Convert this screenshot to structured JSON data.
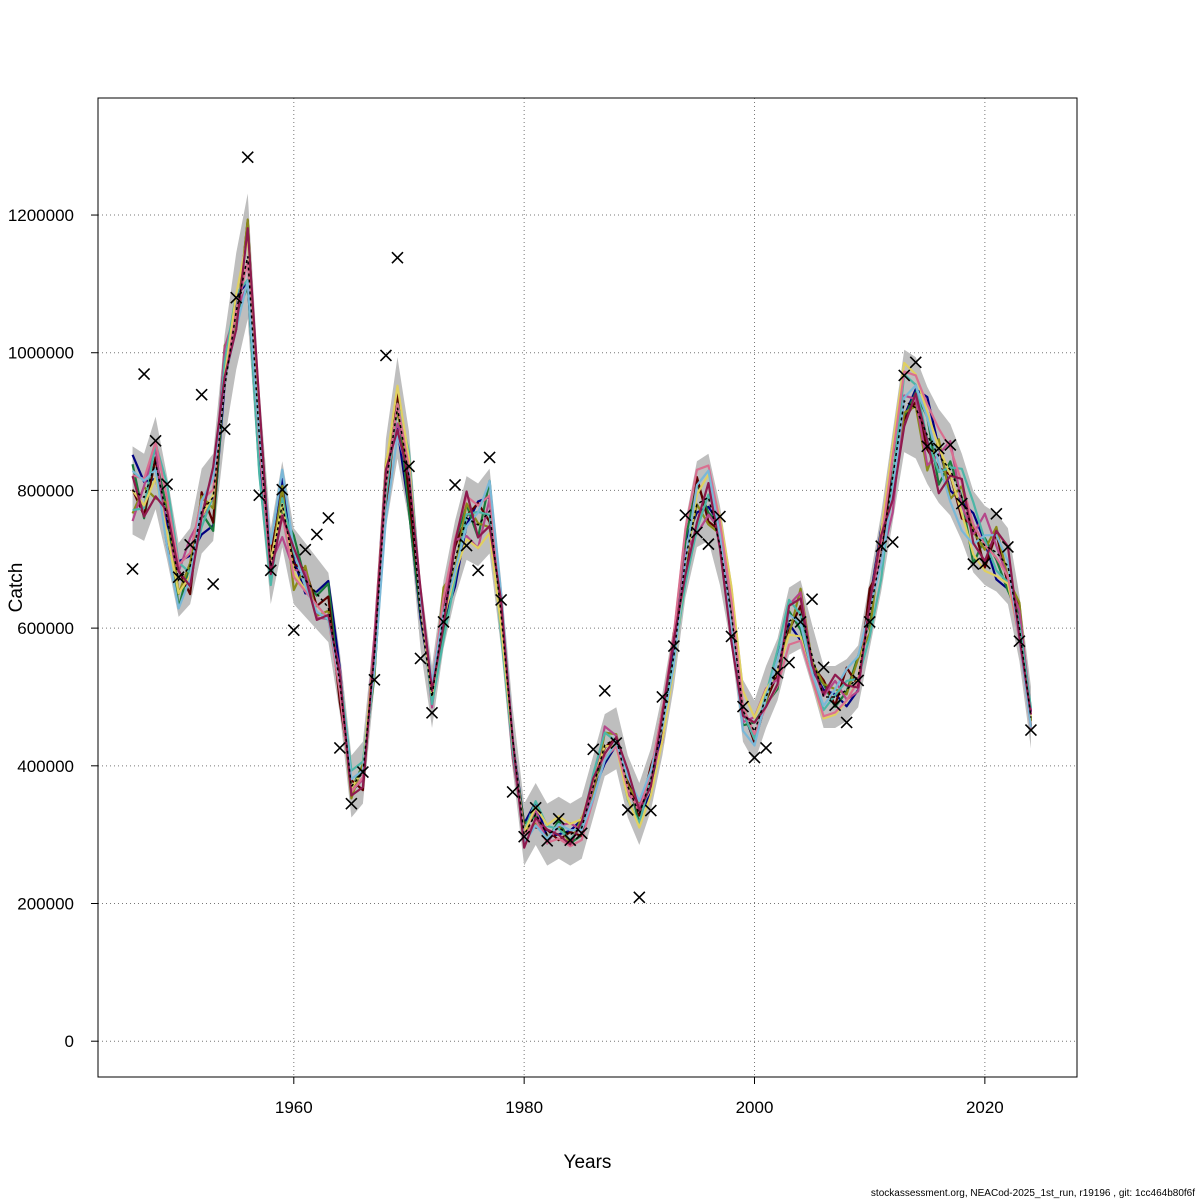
{
  "chart_data": {
    "type": "line",
    "xlabel": "Years",
    "ylabel": "Catch",
    "xlim": [
      1943,
      2028
    ],
    "ylim": [
      -52000,
      1370000
    ],
    "x_ticks": [
      1960,
      1980,
      2000,
      2020
    ],
    "y_ticks": [
      0,
      200000,
      400000,
      600000,
      800000,
      1000000,
      1200000
    ],
    "x_tick_labels": [
      "1960",
      "1980",
      "2000",
      "2020"
    ],
    "y_tick_labels": [
      "0",
      "200000",
      "400000",
      "600000",
      "800000",
      "1000000",
      "1200000"
    ],
    "grid": true,
    "footer": "stockassessment.org, NEACod-2025_1st_run, r19196 , git: 1cc464b80f6f",
    "x": [
      1946,
      1947,
      1948,
      1949,
      1950,
      1951,
      1952,
      1953,
      1954,
      1955,
      1956,
      1957,
      1958,
      1959,
      1960,
      1961,
      1962,
      1963,
      1964,
      1965,
      1966,
      1967,
      1968,
      1969,
      1970,
      1971,
      1972,
      1973,
      1974,
      1975,
      1976,
      1977,
      1978,
      1979,
      1980,
      1981,
      1982,
      1983,
      1984,
      1985,
      1986,
      1987,
      1988,
      1989,
      1990,
      1991,
      1992,
      1993,
      1994,
      1995,
      1996,
      1997,
      1998,
      1999,
      2000,
      2001,
      2002,
      2003,
      2004,
      2005,
      2006,
      2007,
      2008,
      2009,
      2010,
      2011,
      2012,
      2013,
      2014,
      2015,
      2016,
      2017,
      2018,
      2019,
      2020,
      2021,
      2022,
      2023,
      2024
    ],
    "fit": [
      800000,
      790000,
      840000,
      760000,
      670000,
      690000,
      770000,
      790000,
      950000,
      1060000,
      1140000,
      880000,
      690000,
      780000,
      690000,
      670000,
      650000,
      630000,
      520000,
      370000,
      390000,
      560000,
      810000,
      920000,
      820000,
      620000,
      500000,
      620000,
      700000,
      760000,
      750000,
      770000,
      620000,
      440000,
      300000,
      330000,
      300000,
      310000,
      300000,
      310000,
      370000,
      430000,
      440000,
      370000,
      330000,
      380000,
      460000,
      560000,
      700000,
      780000,
      790000,
      720000,
      620000,
      480000,
      450000,
      500000,
      540000,
      610000,
      620000,
      560000,
      500000,
      500000,
      510000,
      530000,
      620000,
      710000,
      820000,
      930000,
      920000,
      880000,
      850000,
      830000,
      790000,
      740000,
      720000,
      710000,
      690000,
      600000,
      470000
    ],
    "observed_catch": [
      686000,
      969000,
      872000,
      809000,
      674000,
      721000,
      939000,
      664000,
      889000,
      1080000,
      1284000,
      793000,
      684000,
      801000,
      597000,
      714000,
      736000,
      760000,
      426000,
      345000,
      391000,
      525000,
      996000,
      1138000,
      835000,
      556000,
      477000,
      609000,
      808000,
      720000,
      684000,
      848000,
      641000,
      362000,
      297000,
      339000,
      291000,
      323000,
      292000,
      302000,
      424000,
      509000,
      433000,
      336000,
      209000,
      335000,
      500000,
      574000,
      764000,
      739000,
      722000,
      762000,
      588000,
      486000,
      412000,
      426000,
      535000,
      550000,
      609000,
      642000,
      543000,
      488000,
      463000,
      524000,
      609000,
      719000,
      725000,
      967000,
      986000,
      864000,
      861000,
      866000,
      781000,
      693000,
      694000,
      766000,
      718000,
      581000,
      452000
    ],
    "series": [
      {
        "color": "#000080"
      },
      {
        "color": "#1a7a3a"
      },
      {
        "color": "#5b0000"
      },
      {
        "color": "#8a8a1a"
      },
      {
        "color": "#b5478a"
      },
      {
        "color": "#4db6a7"
      },
      {
        "color": "#e0d060"
      },
      {
        "color": "#d97090"
      },
      {
        "color": "#7ab8d8"
      },
      {
        "color": "#8e1a4e"
      }
    ],
    "band_color": "#bebebe"
  }
}
